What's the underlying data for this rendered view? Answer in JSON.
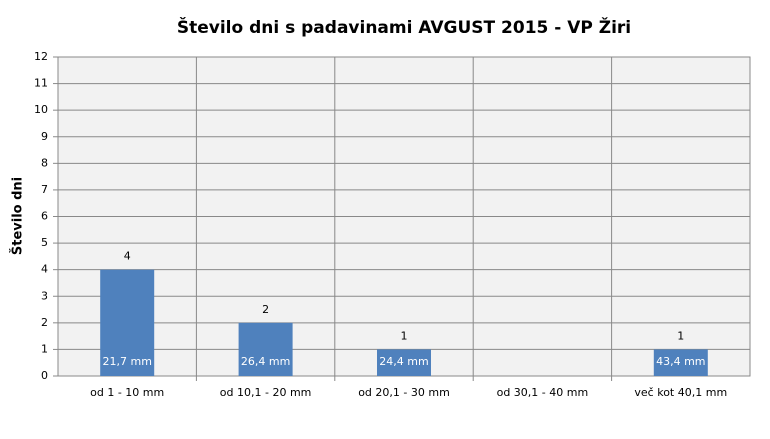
{
  "chart_data": {
    "type": "bar",
    "title": "Število dni s padavinami  AVGUST 2015 - VP Žiri",
    "y_label": "Število dni",
    "categories": [
      "od 1 - 10 mm",
      "od 10,1 - 20 mm",
      "od 20,1 - 30 mm",
      "od 30,1 - 40 mm",
      "več kot 40,1 mm"
    ],
    "values": [
      4,
      2,
      1,
      0,
      1
    ],
    "bar_annotations": [
      "21,7 mm",
      "26,4 mm",
      "24,4 mm",
      null,
      "43,4 mm"
    ],
    "color": "#4f81bd",
    "ylim": [
      0,
      12
    ],
    "yticks": [
      0,
      1,
      2,
      3,
      4,
      5,
      6,
      7,
      8,
      9,
      10,
      11,
      12
    ],
    "grid": true
  }
}
